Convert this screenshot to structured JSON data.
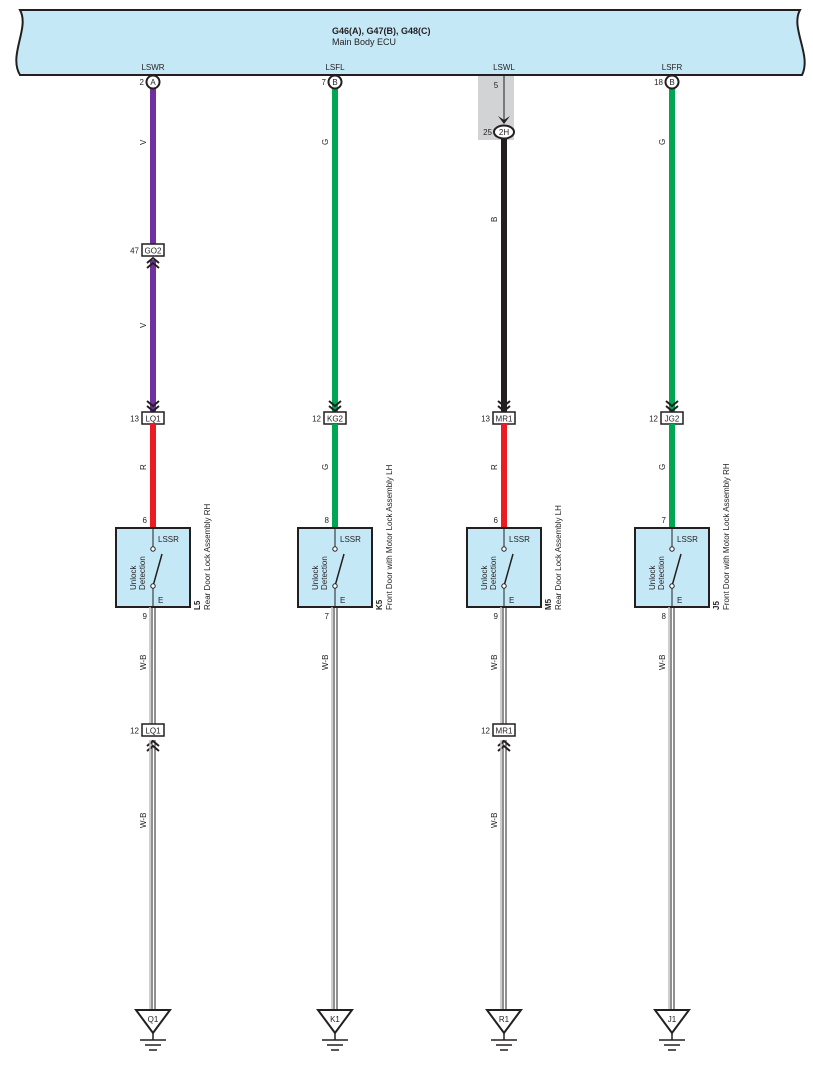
{
  "ecu": {
    "title": "G46(A), G47(B), G48(C)",
    "subtitle": "Main Body ECU",
    "fill": "#c5e8f7"
  },
  "colors": {
    "V": "#7030a0",
    "G": "#00a651",
    "B": "#231f20",
    "R": "#ed1c24",
    "component_fill": "#c5e8f7",
    "shade": "#d1d3d4"
  },
  "columns": [
    {
      "terminal": "LSWR",
      "pin": "2",
      "conn": "A",
      "upper_wires": [
        {
          "code": "V"
        },
        {
          "code": "V"
        }
      ],
      "mid_connector": {
        "name": "GO2",
        "pin": "47"
      },
      "in_connector": {
        "name": "LQ1",
        "pin": "13"
      },
      "lead_wire": "R",
      "component": {
        "code": "L5",
        "name": "Rear Door Lock Assembly RH",
        "pin_in": "6",
        "pin_out": "9",
        "terminal_top": "LSSR",
        "terminal_bottom": "E",
        "func1": "Unlock",
        "func2": "Detection"
      },
      "ground_wires": [
        {
          "code": "W-B"
        },
        {
          "code": "W-B"
        }
      ],
      "ground_connector": {
        "name": "LQ1",
        "pin": "12"
      },
      "ground": "Q1"
    },
    {
      "terminal": "LSFL",
      "pin": "7",
      "conn": "B",
      "upper_wires": [
        {
          "code": "G"
        }
      ],
      "in_connector": {
        "name": "KG2",
        "pin": "12"
      },
      "lead_wire": "G",
      "component": {
        "code": "K5",
        "name": "Front Door with Motor Lock Assembly LH",
        "pin_in": "8",
        "pin_out": "7",
        "terminal_top": "LSSR",
        "terminal_bottom": "E",
        "func1": "Unlock",
        "func2": "Detection"
      },
      "ground_wires": [
        {
          "code": "W-B"
        }
      ],
      "ground": "K1"
    },
    {
      "terminal": "LSWL",
      "pin": "5",
      "shaded": true,
      "junction": {
        "name": "2H",
        "pin": "25"
      },
      "upper_wires": [
        {
          "code": "B"
        }
      ],
      "in_connector": {
        "name": "MR1",
        "pin": "13"
      },
      "lead_wire": "R",
      "component": {
        "code": "M5",
        "name": "Rear Door Lock Assembly LH",
        "pin_in": "6",
        "pin_out": "9",
        "terminal_top": "LSSR",
        "terminal_bottom": "E",
        "func1": "Unlock",
        "func2": "Detection"
      },
      "ground_wires": [
        {
          "code": "W-B"
        },
        {
          "code": "W-B"
        }
      ],
      "ground_connector": {
        "name": "MR1",
        "pin": "12"
      },
      "ground": "R1"
    },
    {
      "terminal": "LSFR",
      "pin": "18",
      "conn": "B",
      "upper_wires": [
        {
          "code": "G"
        }
      ],
      "in_connector": {
        "name": "JG2",
        "pin": "12"
      },
      "lead_wire": "G",
      "component": {
        "code": "J5",
        "name": "Front Door with Motor Lock Assembly RH",
        "pin_in": "7",
        "pin_out": "8",
        "terminal_top": "LSSR",
        "terminal_bottom": "E",
        "func1": "Unlock",
        "func2": "Detection"
      },
      "ground_wires": [
        {
          "code": "W-B"
        }
      ],
      "ground": "J1"
    }
  ]
}
